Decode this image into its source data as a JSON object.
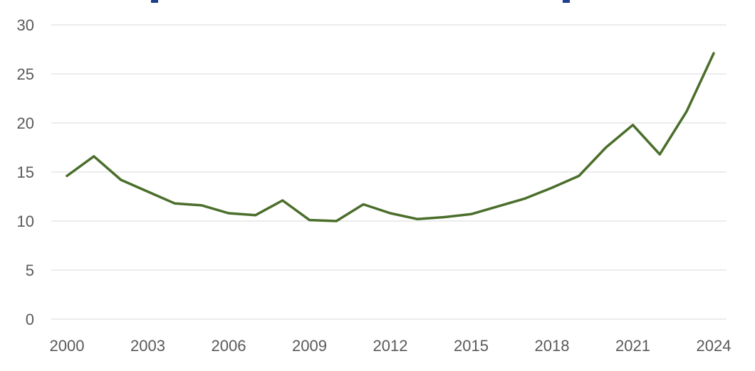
{
  "chart_data": {
    "type": "line",
    "x": [
      2000,
      2001,
      2002,
      2003,
      2004,
      2005,
      2006,
      2007,
      2008,
      2009,
      2010,
      2011,
      2012,
      2013,
      2014,
      2015,
      2016,
      2017,
      2018,
      2019,
      2020,
      2021,
      2022,
      2023,
      2024
    ],
    "series": [
      {
        "values": [
          14.6,
          16.6,
          14.2,
          13.0,
          11.8,
          11.6,
          10.8,
          10.6,
          12.1,
          10.1,
          10.0,
          11.7,
          10.8,
          10.2,
          10.4,
          10.7,
          11.5,
          12.3,
          13.4,
          14.6,
          17.5,
          19.8,
          16.8,
          21.2,
          27.1
        ],
        "color": "#4a6e2a"
      }
    ],
    "x_ticks": [
      "2000",
      "2003",
      "2006",
      "2009",
      "2012",
      "2015",
      "2018",
      "2021",
      "2024"
    ],
    "y_ticks": [
      "0",
      "5",
      "10",
      "15",
      "20",
      "25",
      "30"
    ],
    "ylim": [
      0,
      30
    ],
    "xlim": [
      2000,
      2024
    ],
    "grid": "horizontal",
    "legend": "none",
    "title": "",
    "xlabel": "",
    "ylabel": ""
  },
  "colors": {
    "line": "#4a6e2a",
    "grid": "#d9d9d9",
    "tick_text": "#595959",
    "title_fragment": "#1f3f8f"
  }
}
